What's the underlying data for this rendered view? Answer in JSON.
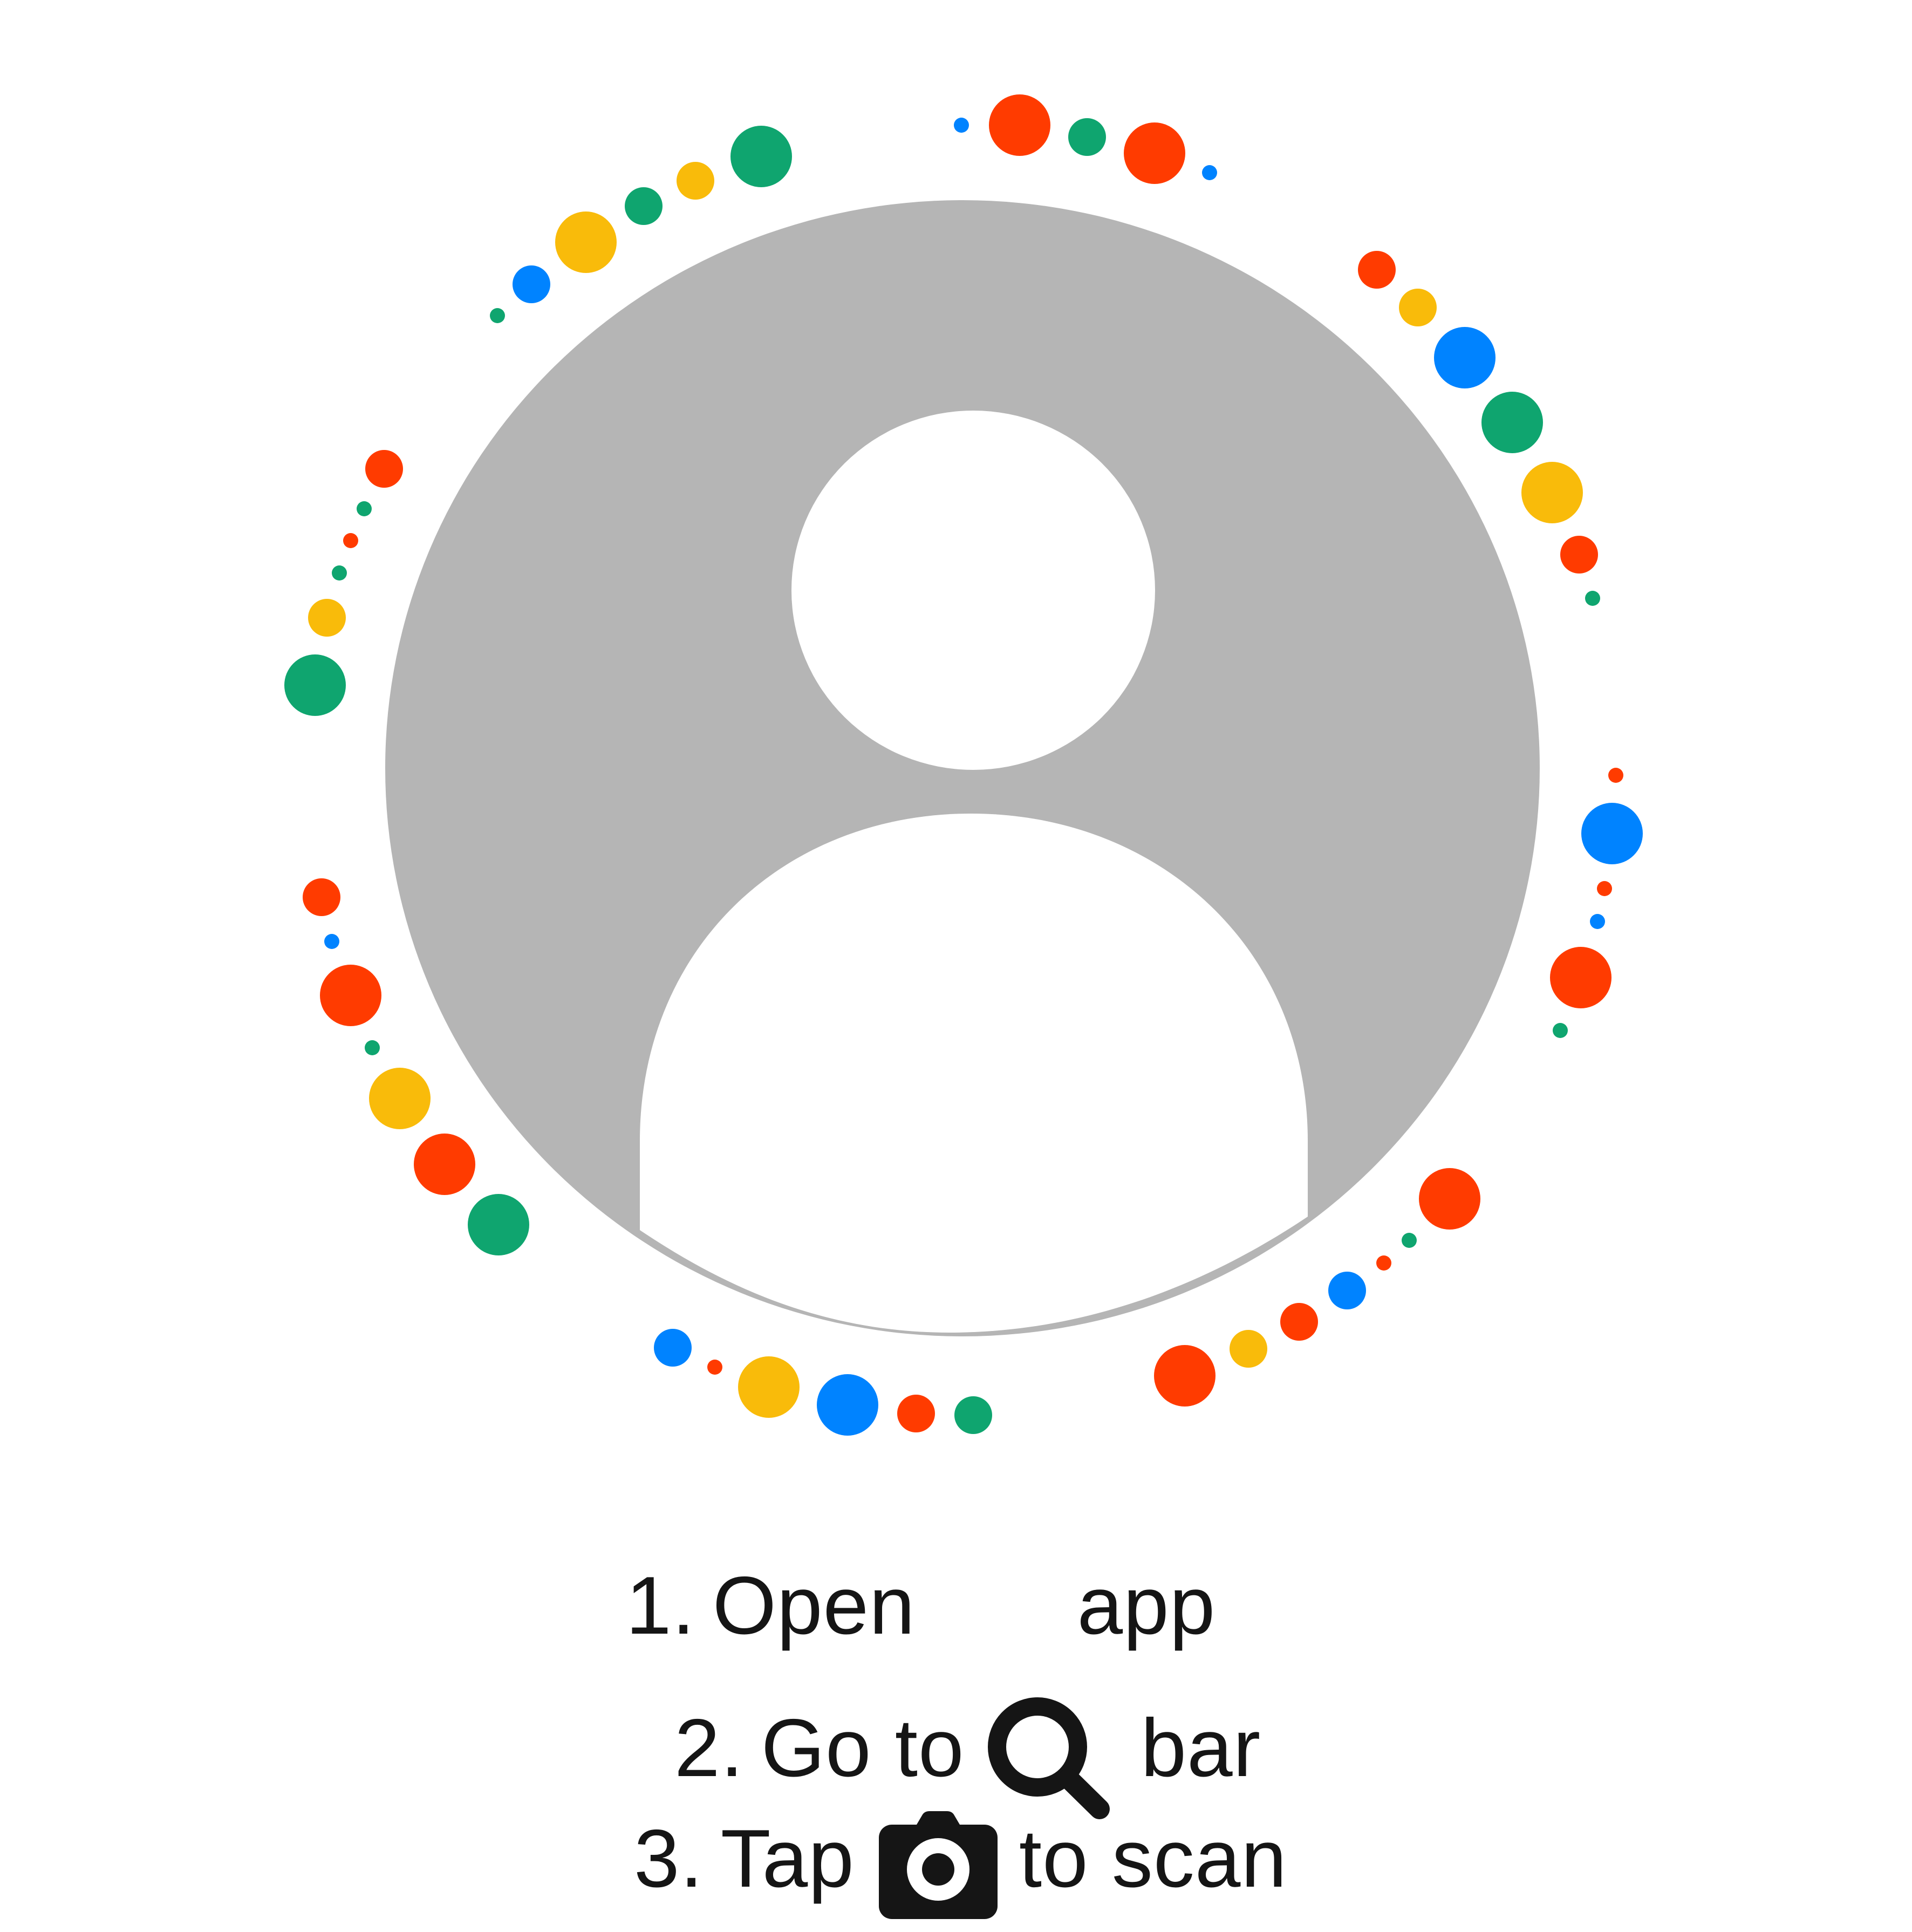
{
  "instructions": {
    "step1": {
      "number": "1.",
      "text_before": "Open",
      "text_after": "app"
    },
    "step2": {
      "number": "2.",
      "text_before": "Go to",
      "icon": "search-icon",
      "text_after": "bar"
    },
    "step3": {
      "number": "3.",
      "text_before": "Tap",
      "icon": "camera-icon",
      "text_after": "to scan"
    }
  },
  "colors": {
    "avatar_background": "#b5b5b5",
    "avatar_foreground": "#ffffff",
    "red": "#ff3b00",
    "green": "#0fa56f",
    "yellow": "#f9bb0a",
    "blue": "#0083ff",
    "text": "#151515"
  },
  "icons": {
    "avatar": "default-profile-avatar",
    "search": "search-icon",
    "camera": "camera-icon"
  }
}
